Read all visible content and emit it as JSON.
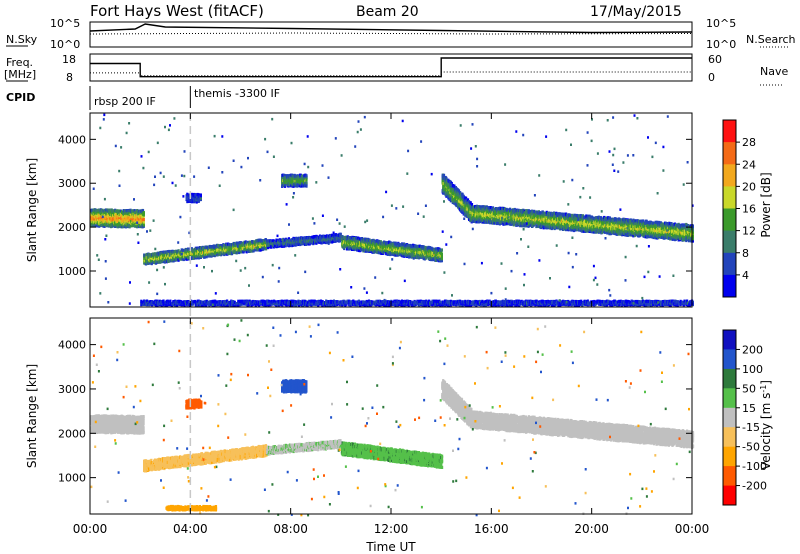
{
  "header": {
    "title": "Fort Hays West (fitACF)",
    "beam": "Beam 20",
    "date": "17/May/2015"
  },
  "summary_panel": {
    "nsky_label": "N.Sky",
    "nsearch_label": "N.Search",
    "ticks_left": [
      "10^5",
      "10^0"
    ],
    "ticks_right": [
      "10^5",
      "10^0"
    ],
    "freq_label": "Freq.",
    "freq_unit": "[MHz]",
    "freq_ticks": [
      "18",
      "8"
    ],
    "nave_label": "Nave",
    "nave_ticks": [
      "60",
      "0"
    ],
    "cpid_label": "CPID",
    "cpid_segments": [
      "rbsp 200 IF",
      "themis -3300 IF"
    ]
  },
  "chart_data": [
    {
      "type": "line",
      "name": "summary",
      "x_range_hours": [
        0,
        24
      ],
      "nsky_level_log10": [
        [
          0,
          3.2
        ],
        [
          1.8,
          3.6
        ],
        [
          2.2,
          4.6
        ],
        [
          3,
          4.0
        ],
        [
          8,
          3.7
        ],
        [
          14,
          3.3
        ],
        [
          20,
          2.9
        ],
        [
          24,
          3.0
        ]
      ],
      "nsearch_level_log10": [
        [
          0,
          2.6
        ],
        [
          8,
          2.8
        ],
        [
          16,
          2.6
        ],
        [
          24,
          2.7
        ]
      ],
      "freq_mhz": [
        [
          0,
          14.5
        ],
        [
          2.0,
          14.5
        ],
        [
          2.0,
          9.6
        ],
        [
          14.0,
          9.6
        ],
        [
          14.0,
          16.5
        ],
        [
          24,
          16.5
        ]
      ],
      "nave": [
        [
          0,
          18
        ],
        [
          2.0,
          18
        ],
        [
          2.0,
          12
        ],
        [
          14.0,
          12
        ],
        [
          14.0,
          20
        ],
        [
          24,
          20
        ]
      ],
      "cpid_switch_hour": 4.0
    },
    {
      "type": "heatmap",
      "name": "power",
      "ylabel": "Slant Range [km]",
      "colorbar_label": "Power [dB]",
      "colorbar_ticks": [
        "28",
        "24",
        "20",
        "16",
        "12",
        "8",
        "4"
      ],
      "y_ticks": [
        "4000",
        "3000",
        "2000",
        "1000"
      ],
      "y_range": [
        180,
        4600
      ],
      "x_range_hours": [
        0,
        24
      ],
      "echo_bands": [
        {
          "t0": 0.0,
          "t1": 2.1,
          "r0": 2200,
          "r1": 2180,
          "w": 380,
          "p": 20
        },
        {
          "t0": 2.1,
          "t1": 7.0,
          "r0": 1250,
          "r1": 1600,
          "w": 230,
          "p": 15
        },
        {
          "t0": 7.0,
          "t1": 10.0,
          "r0": 1600,
          "r1": 1750,
          "w": 160,
          "p": 8
        },
        {
          "t0": 10.0,
          "t1": 14.0,
          "r0": 1650,
          "r1": 1350,
          "w": 280,
          "p": 14
        },
        {
          "t0": 14.0,
          "t1": 15.2,
          "r0": 3000,
          "r1": 2300,
          "w": 420,
          "p": 13
        },
        {
          "t0": 15.2,
          "t1": 24.0,
          "r0": 2300,
          "r1": 1850,
          "w": 360,
          "p": 15
        },
        {
          "t0": 7.6,
          "t1": 8.6,
          "r0": 3050,
          "r1": 3050,
          "w": 260,
          "p": 12
        },
        {
          "t0": 3.8,
          "t1": 4.4,
          "r0": 2650,
          "r1": 2650,
          "w": 180,
          "p": 6
        },
        {
          "t0": 2.0,
          "t1": 24.0,
          "r0": 260,
          "r1": 260,
          "w": 90,
          "p": 5
        }
      ]
    },
    {
      "type": "heatmap",
      "name": "velocity",
      "ylabel": "Slant Range [km]",
      "colorbar_label": "Velocity [m s",
      "colorbar_label_sup": "-1",
      "colorbar_label_end": "]",
      "colorbar_ticks": [
        "200",
        "100",
        "50",
        "15",
        "-15",
        "-50",
        "-100",
        "-200"
      ],
      "y_ticks": [
        "4000",
        "3000",
        "2000",
        "1000"
      ],
      "y_range": [
        180,
        4600
      ],
      "x_range_hours": [
        0,
        24
      ],
      "echo_bands": [
        {
          "t0": 0.0,
          "t1": 2.1,
          "r0": 2200,
          "r1": 2180,
          "w": 380,
          "v": 0
        },
        {
          "t0": 2.1,
          "t1": 7.0,
          "r0": 1250,
          "r1": 1600,
          "w": 230,
          "v": -40
        },
        {
          "t0": 7.0,
          "t1": 10.0,
          "r0": 1600,
          "r1": 1750,
          "w": 160,
          "v": 10
        },
        {
          "t0": 10.0,
          "t1": 14.0,
          "r0": 1650,
          "r1": 1350,
          "w": 280,
          "v": 40
        },
        {
          "t0": 14.0,
          "t1": 15.2,
          "r0": 3000,
          "r1": 2300,
          "w": 420,
          "v": 0
        },
        {
          "t0": 15.2,
          "t1": 24.0,
          "r0": 2300,
          "r1": 1850,
          "w": 360,
          "v": 0
        },
        {
          "t0": 7.6,
          "t1": 8.6,
          "r0": 3050,
          "r1": 3050,
          "w": 260,
          "v": 150
        },
        {
          "t0": 3.8,
          "t1": 4.4,
          "r0": 2650,
          "r1": 2650,
          "w": 180,
          "v": -150
        },
        {
          "t0": 3.0,
          "t1": 5.0,
          "r0": 300,
          "r1": 300,
          "w": 80,
          "v": -80
        }
      ]
    }
  ],
  "x_axis": {
    "ticks": [
      "00:00",
      "04:00",
      "08:00",
      "12:00",
      "16:00",
      "20:00",
      "00:00"
    ],
    "label": "Time UT"
  },
  "colors": {
    "power_scale": [
      "#0000ee",
      "#2244bb",
      "#3a7d6a",
      "#3b9a2b",
      "#c9d82a",
      "#f2a81d",
      "#f46a16",
      "#ff1111"
    ],
    "velocity_scale": [
      "#ff0000",
      "#ff5a00",
      "#ffa500",
      "#f7c05a",
      "#c0c0c0",
      "#55c04a",
      "#2e7a3c",
      "#2255cc",
      "#1010c0"
    ]
  }
}
